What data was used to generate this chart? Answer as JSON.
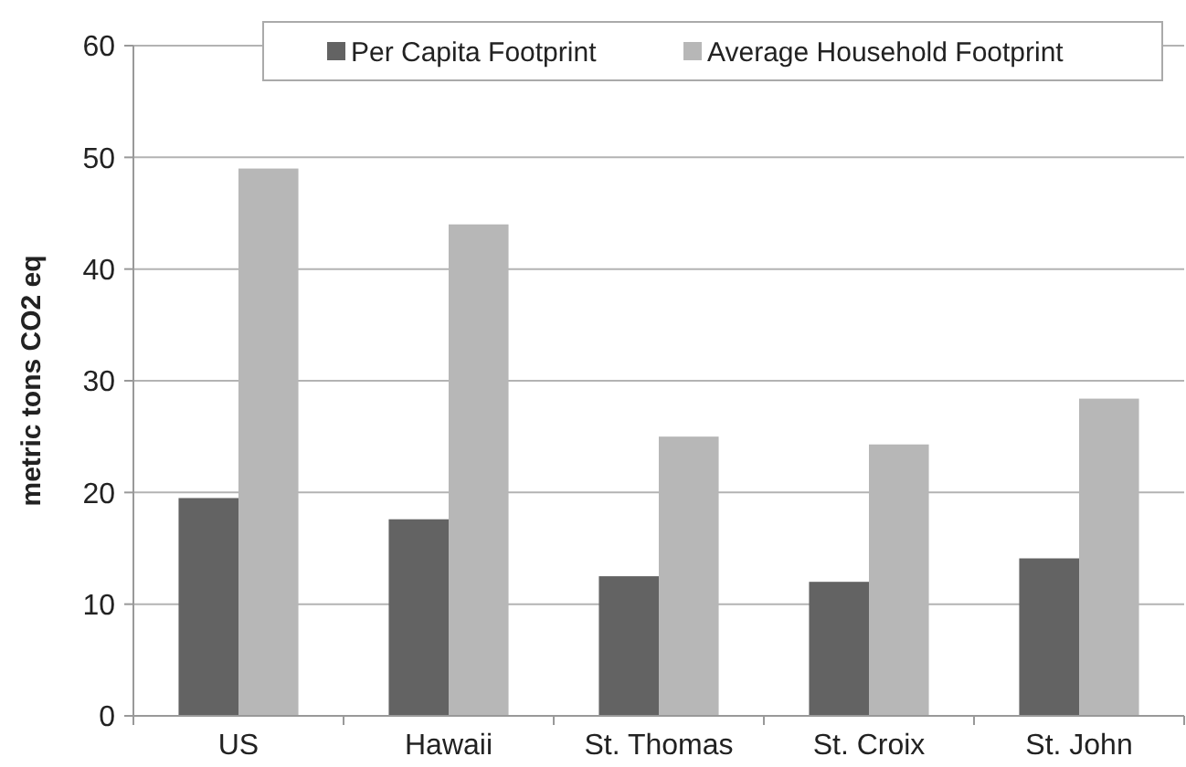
{
  "chart_data": {
    "type": "bar",
    "ylabel": "metric tons CO2 eq",
    "categories": [
      "US",
      "Hawaii",
      "St. Thomas",
      "St. Croix",
      "St. John"
    ],
    "series": [
      {
        "name": "Per Capita Footprint",
        "color": "#636363",
        "values": [
          19.5,
          17.6,
          12.5,
          12.0,
          14.1
        ]
      },
      {
        "name": "Average Household Footprint",
        "color": "#b7b7b7",
        "values": [
          49.0,
          44.0,
          25.0,
          24.3,
          28.4
        ]
      }
    ],
    "ylim": [
      0,
      60
    ],
    "yticks": [
      0,
      10,
      20,
      30,
      40,
      50,
      60
    ],
    "grid": "y",
    "legend": "top right"
  }
}
